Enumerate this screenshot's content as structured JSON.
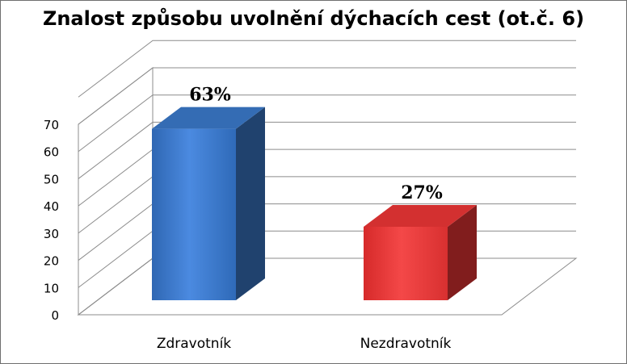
{
  "chart_data": {
    "type": "bar",
    "title": "Znalost způsobu uvolnění dýchacích cest (ot.č. 6)",
    "categories": [
      "Zdravotník",
      "Nezdravotník"
    ],
    "values": [
      63,
      27
    ],
    "data_labels": [
      "63%",
      "27%"
    ],
    "colors": [
      "#3a78c8",
      "#ea3535"
    ],
    "ylim": [
      0,
      70
    ],
    "yticks": [
      0,
      10,
      20,
      30,
      40,
      50,
      60,
      70
    ],
    "grid": true,
    "legend": "none",
    "style": "3d-column"
  }
}
